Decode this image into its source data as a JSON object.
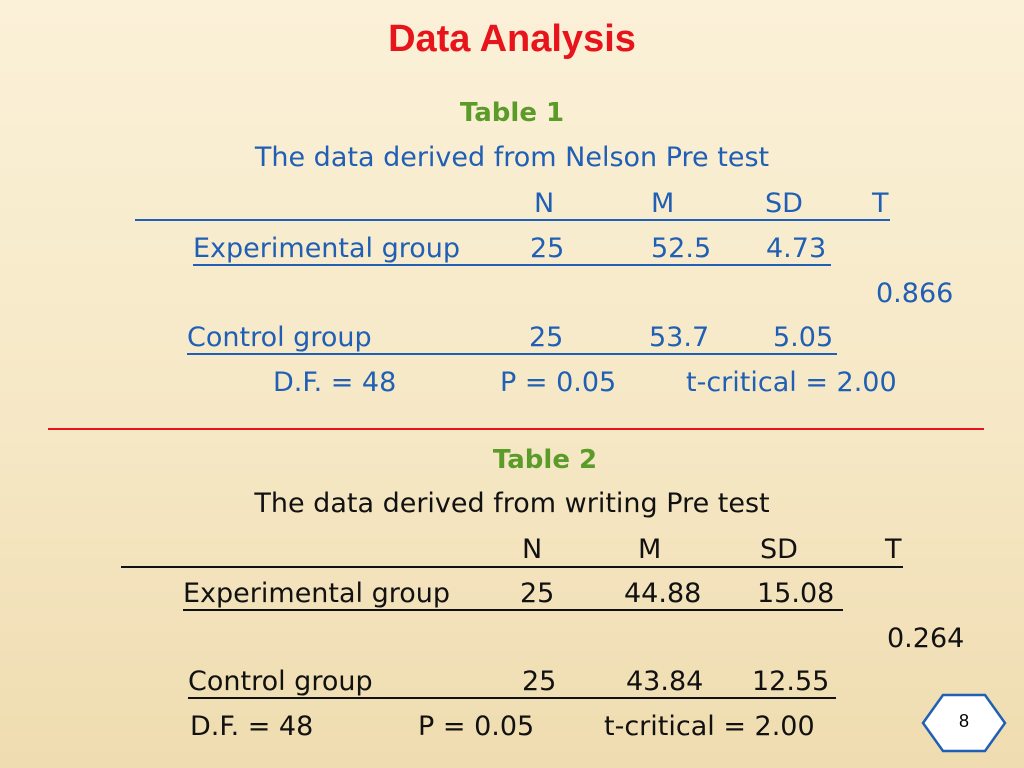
{
  "slide": {
    "title": "Data Analysis",
    "page_number": "8"
  },
  "table1": {
    "label": "Table 1",
    "caption": "The data derived from Nelson Pre test",
    "headers": [
      "N",
      "M",
      "SD",
      "T"
    ],
    "rows": [
      {
        "group": "Experimental group",
        "n": "25",
        "m": "52.5",
        "sd": "4.73"
      },
      {
        "group": "Control group",
        "n": "25",
        "m": "53.7",
        "sd": "5.05"
      }
    ],
    "t_value": "0.866",
    "df": "D.F. = 48",
    "p": "P = 0.05",
    "t_critical": "t-critical = 2.00"
  },
  "table2": {
    "label": "Table 2",
    "caption": "The data derived from writing Pre test",
    "headers": [
      "N",
      "M",
      "SD",
      "T"
    ],
    "rows": [
      {
        "group": "Experimental group",
        "n": "25",
        "m": "44.88",
        "sd": "15.08"
      },
      {
        "group": "Control group",
        "n": "25",
        "m": "43.84",
        "sd": "12.55"
      }
    ],
    "t_value": "0.264",
    "df": "D.F. = 48",
    "p": "P = 0.05",
    "t_critical": "t-critical = 2.00"
  },
  "colors": {
    "title": "#e8141b",
    "table_label": "#5a9b2a",
    "table1_text": "#1f5fb5",
    "table2_text": "#111111",
    "separator": "#e8141b"
  }
}
